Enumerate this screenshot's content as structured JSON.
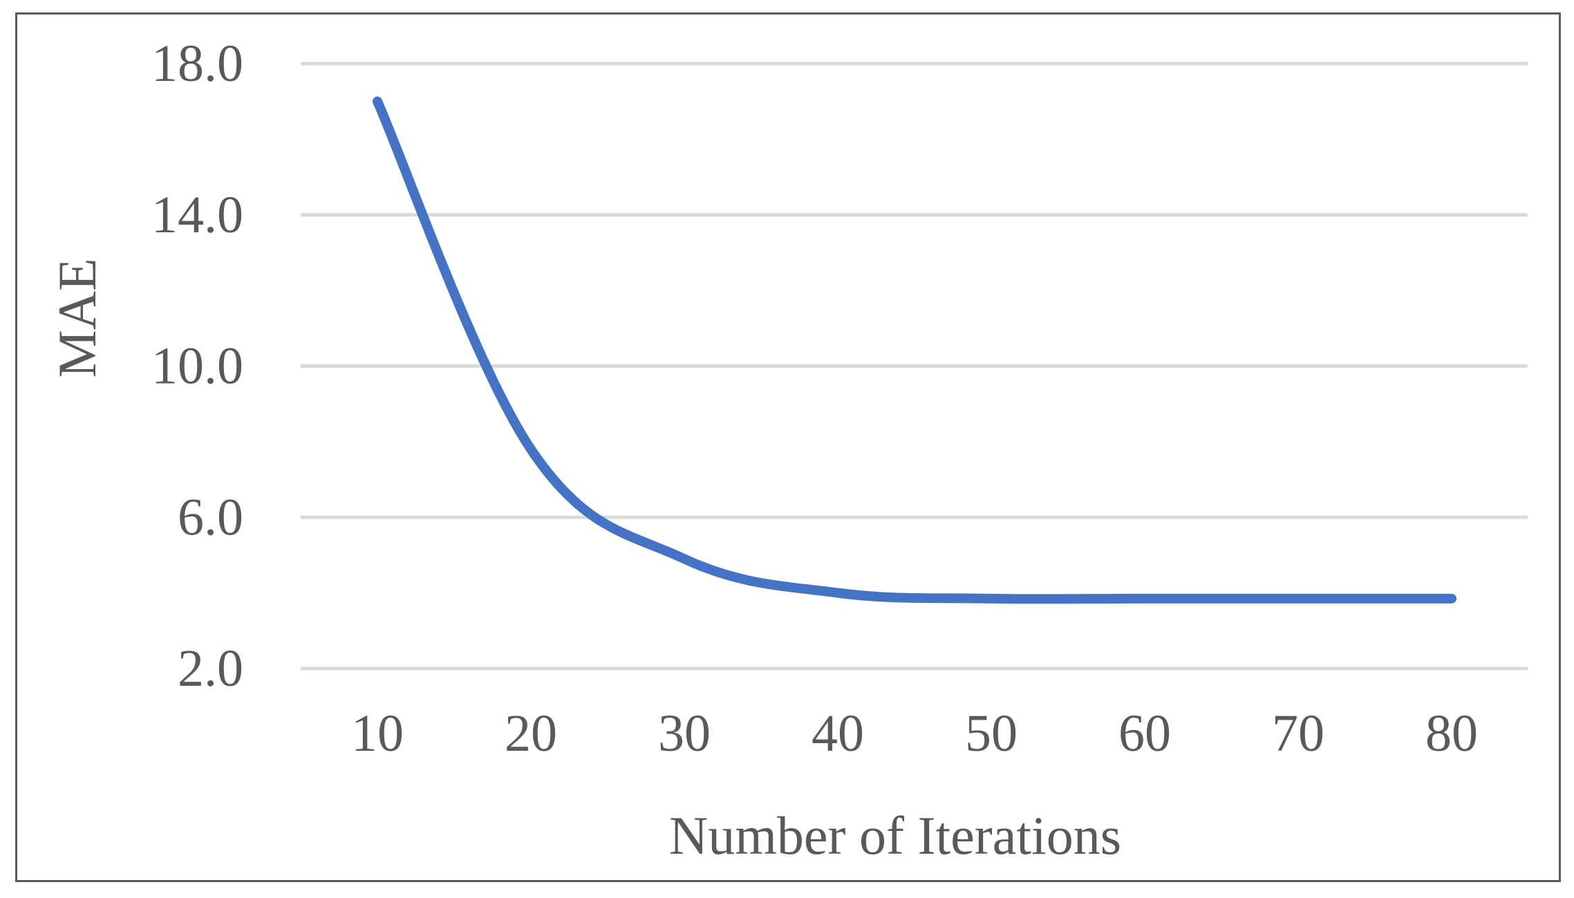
{
  "chart_data": {
    "type": "line",
    "title": "",
    "xlabel": "Number of Iterations",
    "ylabel": "MAE",
    "x": [
      10,
      20,
      30,
      40,
      50,
      60,
      70,
      80
    ],
    "x_tick_labels": [
      "10",
      "20",
      "30",
      "40",
      "50",
      "60",
      "70",
      "80"
    ],
    "y_tick_labels": [
      "2.0",
      "6.0",
      "10.0",
      "14.0",
      "18.0"
    ],
    "y_ticks": [
      2,
      6,
      10,
      14,
      18
    ],
    "ylim": [
      2,
      18
    ],
    "grid": true,
    "legend": "none",
    "series": [
      {
        "color": "#4472C4",
        "smooth": true,
        "values": [
          17.0,
          7.8,
          4.9,
          4.0,
          3.85,
          3.85,
          3.85,
          3.85
        ]
      }
    ]
  }
}
